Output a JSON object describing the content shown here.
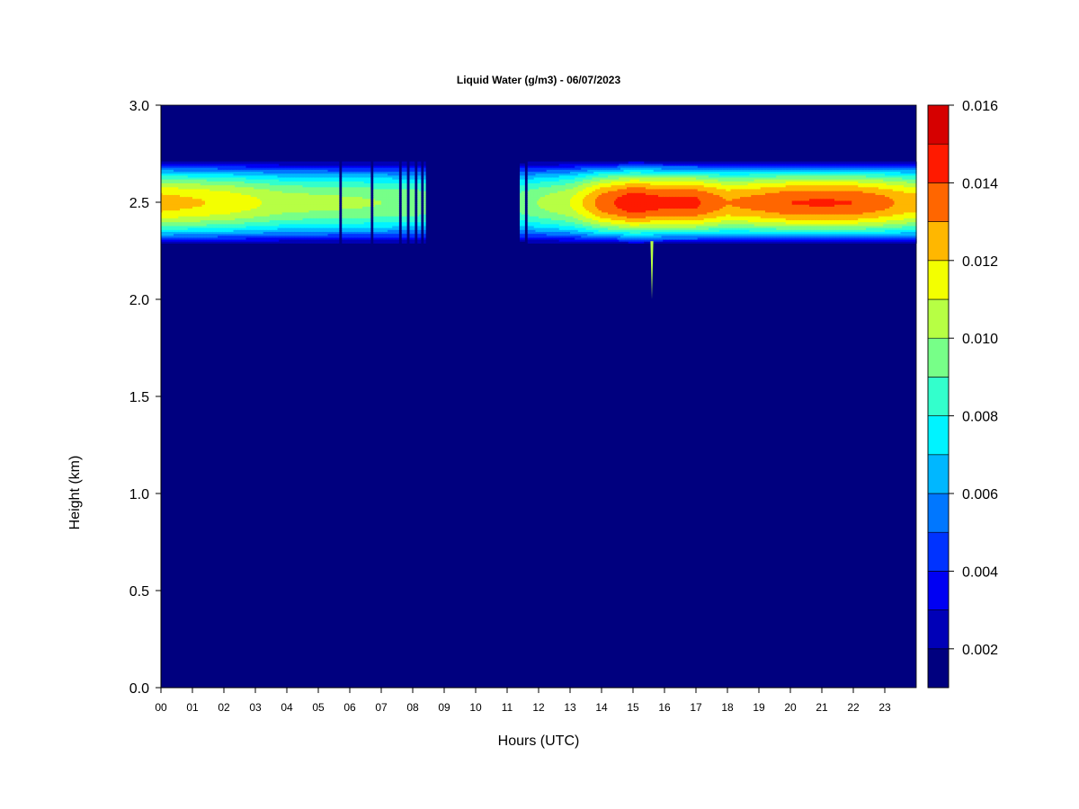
{
  "chart_data": {
    "type": "heatmap",
    "title": "Liquid Water (g/m3) - 06/07/2023",
    "xlabel": "Hours (UTC)",
    "ylabel": "Height (km)",
    "xlim": [
      0,
      24
    ],
    "ylim": [
      0,
      3.0
    ],
    "x_ticks": [
      0,
      1,
      2,
      3,
      4,
      5,
      6,
      7,
      8,
      9,
      10,
      11,
      12,
      13,
      14,
      15,
      16,
      17,
      18,
      19,
      20,
      21,
      22,
      23
    ],
    "x_tick_labels": [
      "00",
      "01",
      "02",
      "03",
      "04",
      "05",
      "06",
      "07",
      "08",
      "09",
      "10",
      "11",
      "12",
      "13",
      "14",
      "15",
      "16",
      "17",
      "18",
      "19",
      "20",
      "21",
      "22",
      "23"
    ],
    "y_ticks": [
      0.0,
      0.5,
      1.0,
      1.5,
      2.0,
      2.5,
      3.0
    ],
    "y_tick_labels": [
      "0.0",
      "0.5",
      "1.0",
      "1.5",
      "2.0",
      "2.5",
      "3.0"
    ],
    "colorbar": {
      "levels": [
        0.001,
        0.002,
        0.003,
        0.004,
        0.005,
        0.006,
        0.007,
        0.008,
        0.009,
        0.01,
        0.011,
        0.012,
        0.013,
        0.014,
        0.015,
        0.016
      ],
      "colors": [
        "#00007f",
        "#0000b7",
        "#0000f3",
        "#0033ff",
        "#0077ff",
        "#00b7ff",
        "#00f3ff",
        "#33ffcc",
        "#77ff88",
        "#b7ff44",
        "#f3ff00",
        "#ffb700",
        "#ff6600",
        "#ff1a00",
        "#d60000",
        "#7f0000"
      ],
      "tick_values": [
        0.002,
        0.004,
        0.006,
        0.008,
        0.01,
        0.012,
        0.014,
        0.016
      ],
      "tick_labels": [
        "0.002",
        "0.004",
        "0.006",
        "0.008",
        "0.010",
        "0.012",
        "0.014",
        "0.016"
      ]
    },
    "layer": {
      "center_height_km": 2.5,
      "half_width_km": 0.23,
      "gap_hours": [
        8.4,
        11.3
      ],
      "peak_by_hour": [
        {
          "hour": 0,
          "peak": 0.0125
        },
        {
          "hour": 2,
          "peak": 0.0118
        },
        {
          "hour": 4,
          "peak": 0.0105
        },
        {
          "hour": 6,
          "peak": 0.0102
        },
        {
          "hour": 8,
          "peak": 0.0098
        },
        {
          "hour": 11.4,
          "peak": 0.0095
        },
        {
          "hour": 13,
          "peak": 0.011
        },
        {
          "hour": 14,
          "peak": 0.0135
        },
        {
          "hour": 15,
          "peak": 0.0148
        },
        {
          "hour": 16,
          "peak": 0.0142
        },
        {
          "hour": 17,
          "peak": 0.0142
        },
        {
          "hour": 18,
          "peak": 0.013
        },
        {
          "hour": 19,
          "peak": 0.0134
        },
        {
          "hour": 20,
          "peak": 0.014
        },
        {
          "hour": 21,
          "peak": 0.0141
        },
        {
          "hour": 22,
          "peak": 0.014
        },
        {
          "hour": 23,
          "peak": 0.0133
        },
        {
          "hour": 23.85,
          "peak": 0.0125
        }
      ],
      "dropouts_hours": [
        5.7,
        6.7,
        7.6,
        7.85,
        8.1,
        8.3,
        11.35,
        11.6
      ],
      "spike": {
        "hour": 15.6,
        "bottom_km": 2.0,
        "value": 0.0105
      }
    }
  }
}
